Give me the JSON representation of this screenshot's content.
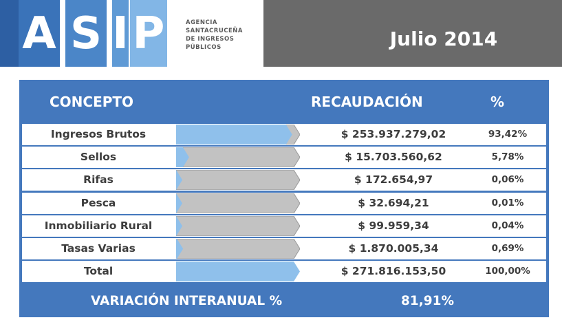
{
  "header": {
    "logo_letters": [
      "A",
      "S",
      "I",
      "P"
    ],
    "agency_lines": "AGENCIA\nSANTACRUCEÑA\nDE INGRESOS\nPÚBLICOS",
    "period": "Julio 2014"
  },
  "colors": {
    "header_blue": "#4478bd",
    "bar_blue": "#8fc0eb",
    "bar_gray": "#c2c2c2",
    "date_bg": "#6a6a6a",
    "text_dark": "#3d3d3d"
  },
  "chart_data": {
    "type": "table",
    "columns": [
      "CONCEPTO",
      "RECAUDACIÓN",
      "%"
    ],
    "rows": [
      {
        "concepto": "Ingresos Brutos",
        "recaudacion": "$ 253.937.279,02",
        "pct": "93,42%",
        "share": 93.42
      },
      {
        "concepto": "Sellos",
        "recaudacion": "$ 15.703.560,62",
        "pct": "5,78%",
        "share": 5.78
      },
      {
        "concepto": "Rifas",
        "recaudacion": "$ 172.654,97",
        "pct": "0,06%",
        "share": 0.06
      },
      {
        "concepto": "Pesca",
        "recaudacion": "$ 32.694,21",
        "pct": "0,01%",
        "share": 0.01
      },
      {
        "concepto": "Inmobiliario Rural",
        "recaudacion": "$ 99.959,34",
        "pct": "0,04%",
        "share": 0.04
      },
      {
        "concepto": "Tasas Varias",
        "recaudacion": "$ 1.870.005,34",
        "pct": "0,69%",
        "share": 0.69
      },
      {
        "concepto": "Total",
        "recaudacion": "$ 271.816.153,50",
        "pct": "100,00%",
        "share": 100
      }
    ],
    "footer": {
      "label": "VARIACIÓN INTERANUAL %",
      "value": "81,91%"
    }
  }
}
